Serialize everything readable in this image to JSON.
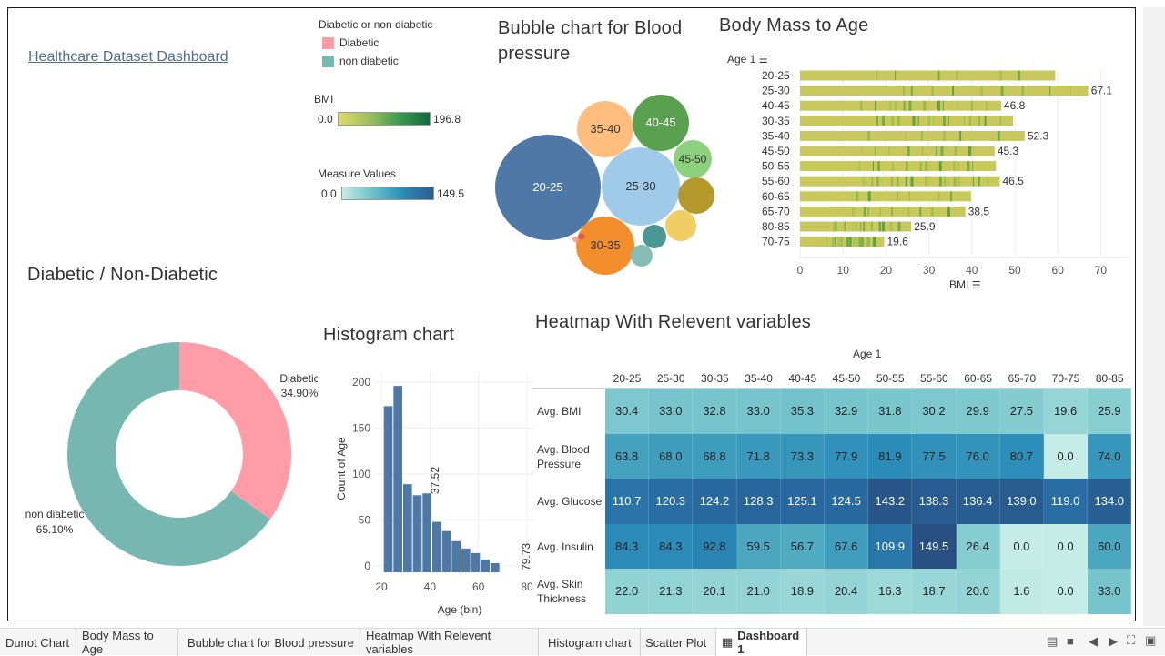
{
  "dashboard": {
    "title": "Healthcare Dataset Dashboard"
  },
  "legend_diabetic": {
    "title": "Diabetic or non diabetic",
    "items": [
      {
        "label": "Diabetic",
        "color": "#ff9da7"
      },
      {
        "label": "non diabetic",
        "color": "#76b7b2"
      }
    ]
  },
  "legend_bmi": {
    "title": "BMI",
    "min": "0.0",
    "max": "196.8"
  },
  "legend_measure": {
    "title": "Measure Values",
    "min": "0.0",
    "max": "149.5"
  },
  "bubble": {
    "title": "Bubble chart for Blood pressure",
    "chart_data": {
      "type": "scatter",
      "bubbles": [
        {
          "label": "20-25",
          "color": "#4e79a7"
        },
        {
          "label": "25-30",
          "color": "#a0cbe8"
        },
        {
          "label": "30-35",
          "color": "#f28e2b"
        },
        {
          "label": "35-40",
          "color": "#ffbe7d"
        },
        {
          "label": "40-45",
          "color": "#59a14f"
        },
        {
          "label": "45-50",
          "color": "#8cd17d"
        },
        {
          "label": "",
          "color": "#b6992d"
        },
        {
          "label": "",
          "color": "#f1ce63"
        },
        {
          "label": "",
          "color": "#499894"
        },
        {
          "label": "",
          "color": "#86bcb6"
        },
        {
          "label": "",
          "color": "#e15759"
        },
        {
          "label": "",
          "color": "#ff9d9a"
        }
      ]
    }
  },
  "bmi_age": {
    "title": "Body Mass to Age",
    "age_header": "Age 1",
    "x_title": "BMI",
    "chart_data": {
      "type": "bar",
      "categories": [
        "20-25",
        "25-30",
        "40-45",
        "30-35",
        "35-40",
        "45-50",
        "50-55",
        "55-60",
        "60-65",
        "65-70",
        "80-85",
        "70-75"
      ],
      "values": [
        59.4,
        67.1,
        46.8,
        49.6,
        52.3,
        45.3,
        45.6,
        46.5,
        39.8,
        38.5,
        25.9,
        19.6
      ],
      "labels": [
        "",
        "67.1",
        "46.8",
        "",
        "52.3",
        "45.3",
        "",
        "46.5",
        "",
        "38.5",
        "25.9",
        "19.6"
      ],
      "xticks": [
        "0",
        "10",
        "20",
        "30",
        "40",
        "50",
        "60",
        "70"
      ],
      "xlim": [
        0,
        75
      ]
    }
  },
  "donut": {
    "title": "Diabetic / Non-Diabetic",
    "chart_data": {
      "type": "pie",
      "slices": [
        {
          "name": "Diabetic",
          "pct": 34.9,
          "label": "34.90%",
          "color": "#ff9da7"
        },
        {
          "name": "non diabetic",
          "pct": 65.1,
          "label": "65.10%",
          "color": "#76b7b2"
        }
      ]
    }
  },
  "histogram": {
    "title": "Histogram chart",
    "ylabel": "Count of Age",
    "xlabel": "Age (bin)",
    "chart_data": {
      "type": "bar",
      "values": [
        173,
        195,
        88,
        76,
        78,
        47,
        37,
        26,
        18,
        13,
        6,
        2
      ],
      "bin_start": 21,
      "bin_width": 4,
      "yticks": [
        "200",
        "150",
        "100",
        "50",
        "0"
      ],
      "xticks": [
        "20",
        "40",
        "60",
        "80"
      ],
      "annotations": [
        "37.52",
        "79.73"
      ],
      "ylim": [
        0,
        210
      ],
      "xlim": [
        17,
        83
      ]
    }
  },
  "heatmap": {
    "title": "Heatmap With Relevent variables",
    "col_header": "Age 1",
    "chart_data": {
      "type": "heatmap",
      "columns": [
        "20-25",
        "25-30",
        "30-35",
        "35-40",
        "40-45",
        "45-50",
        "50-55",
        "55-60",
        "60-65",
        "65-70",
        "70-75",
        "80-85"
      ],
      "rows": [
        {
          "name": "Avg. BMI",
          "values": [
            "30.4",
            "33.0",
            "32.8",
            "33.0",
            "35.3",
            "32.9",
            "31.8",
            "30.2",
            "29.9",
            "27.5",
            "19.6",
            "25.9"
          ]
        },
        {
          "name": "Avg. Blood Pressure",
          "values": [
            "63.8",
            "68.0",
            "68.8",
            "71.8",
            "73.3",
            "77.9",
            "81.9",
            "77.5",
            "76.0",
            "80.7",
            "0.0",
            "74.0"
          ]
        },
        {
          "name": "Avg. Glucose",
          "values": [
            "110.7",
            "120.3",
            "124.2",
            "128.3",
            "125.1",
            "124.5",
            "143.2",
            "138.3",
            "136.4",
            "139.0",
            "119.0",
            "134.0"
          ]
        },
        {
          "name": "Avg. Insulin",
          "values": [
            "84.3",
            "84.3",
            "92.8",
            "59.5",
            "56.7",
            "67.6",
            "109.9",
            "149.5",
            "26.4",
            "0.0",
            "0.0",
            "60.0"
          ]
        },
        {
          "name": "Avg. Skin Thickness",
          "values": [
            "22.0",
            "21.3",
            "20.1",
            "21.0",
            "18.9",
            "20.4",
            "16.3",
            "18.7",
            "20.0",
            "1.6",
            "0.0",
            "33.0"
          ]
        }
      ],
      "range": [
        0,
        149.5
      ]
    }
  },
  "tabs": [
    {
      "label": "Dunot Chart"
    },
    {
      "label": "Body Mass to Age"
    },
    {
      "label": "Bubble chart for Blood pressure"
    },
    {
      "label": "Heatmap With Relevent variables"
    },
    {
      "label": "Histogram chart"
    },
    {
      "label": "Scatter Plot"
    },
    {
      "label": "Dashboard 1",
      "active": true
    }
  ]
}
